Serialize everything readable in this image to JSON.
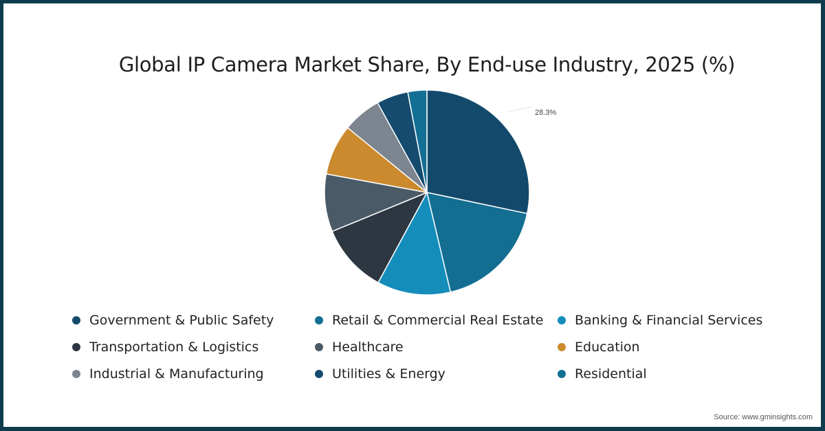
{
  "title": "Global IP Camera Market Share, By End-use Industry, 2025 (%)",
  "source": "Source: www.gminsights.com",
  "slice_label": "28.3%",
  "colors": {
    "border": "#0f3c4c",
    "background": "#ffffff"
  },
  "legend": [
    {
      "label": "Government & Public Safety",
      "color": "#134a6b"
    },
    {
      "label": "Retail & Commercial Real Estate",
      "color": "#136e92"
    },
    {
      "label": "Banking & Financial Services",
      "color": "#148dbb"
    },
    {
      "label": "Transportation & Logistics",
      "color": "#2d3741"
    },
    {
      "label": "Healthcare",
      "color": "#4a5a67"
    },
    {
      "label": "Education",
      "color": "#cc8a2e"
    },
    {
      "label": "Industrial & Manufacturing",
      "color": "#7c8590"
    },
    {
      "label": "Utilities & Energy",
      "color": "#144b6e"
    },
    {
      "label": "Residential",
      "color": "#146f94"
    }
  ],
  "chart_data": {
    "type": "pie",
    "title": "Global IP Camera Market Share, By End-use Industry, 2025 (%)",
    "categories": [
      "Government & Public Safety",
      "Retail & Commercial Real Estate",
      "Banking & Financial Services",
      "Transportation & Logistics",
      "Healthcare",
      "Education",
      "Industrial & Manufacturing",
      "Utilities & Energy",
      "Residential"
    ],
    "values": [
      28.3,
      18.0,
      11.6,
      10.9,
      9.1,
      8.0,
      6.1,
      5.0,
      3.0
    ],
    "colors": [
      "#134a6b",
      "#136e92",
      "#148dbb",
      "#2d3741",
      "#4a5a67",
      "#cc8a2e",
      "#7c8590",
      "#144b6e",
      "#146f94"
    ],
    "start_angle": "12 o'clock, clockwise",
    "annotations": [
      {
        "category": "Government & Public Safety",
        "text": "28.3%"
      }
    ],
    "legend_position": "bottom",
    "unit": "%"
  }
}
